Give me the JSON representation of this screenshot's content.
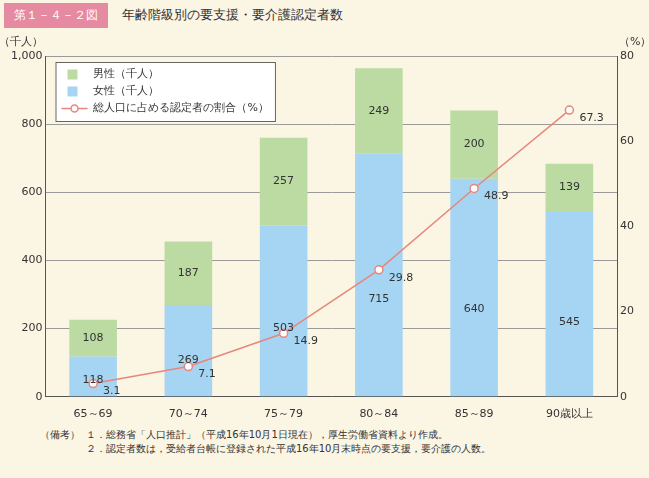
{
  "chart_data": {
    "type": "bar",
    "subtitle": "第１－４－２図",
    "title": "年齢階級別の要支援・要介護認定者数",
    "y_label": "（千人）",
    "y2_label": "（%）",
    "categories": [
      "65～69",
      "70～74",
      "75～79",
      "80～84",
      "85～89",
      "90歳以上"
    ],
    "series": [
      {
        "name": "女性（千人）",
        "color": "#a6d5f3",
        "values": [
          118,
          269,
          503,
          715,
          640,
          545
        ]
      },
      {
        "name": "男性（千人）",
        "color": "#bcdba2",
        "values": [
          108,
          187,
          257,
          249,
          200,
          139
        ]
      },
      {
        "name": "総人口に占める認定者の割合（%）",
        "type": "line",
        "axis": "y2",
        "color": "#e7867c",
        "marker": "circle",
        "values": [
          3.1,
          7.1,
          14.9,
          29.8,
          48.9,
          67.3
        ]
      }
    ],
    "stacked": true,
    "data_labels": true,
    "grid": true,
    "legend": "upper left",
    "ylim": [
      0,
      1000
    ],
    "yticks": [
      0,
      200,
      400,
      600,
      800,
      {
        "value": 1000,
        "label": "1,000"
      }
    ],
    "y2lim": [
      0,
      80
    ],
    "y2ticks": [
      0,
      20,
      40,
      60,
      80
    ],
    "annotations": [
      "（備考）",
      "１．総務省「人口推計」（平成16年10月1日現在），厚生労働省資料より作成。",
      "２．認定者数は，受給者台帳に登録された平成16年10月末時点の要支援，要介護の人数。"
    ]
  }
}
